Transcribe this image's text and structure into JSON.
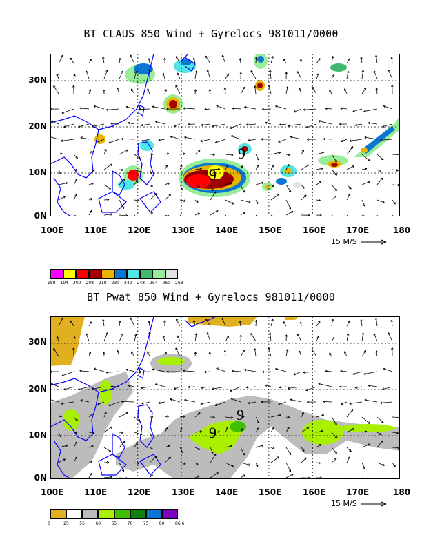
{
  "panel1": {
    "title": "BT CLAUS 850 Wind + Gyrelocs 981011/0000",
    "lat_labels": [
      "30N",
      "20N",
      "10N",
      "0N"
    ],
    "lon_labels": [
      "100E",
      "110E",
      "120E",
      "130E",
      "140E",
      "150E",
      "160E",
      "170E",
      "180"
    ],
    "scale_label": "15 M/S",
    "colorbar_colors": [
      "#ff00ff",
      "#ffff00",
      "#ff0000",
      "#a00000",
      "#e8b400",
      "#0a78d2",
      "#4ee6e6",
      "#40b870",
      "#98ee98",
      "#e2e2e2"
    ],
    "colorbar_labels": [
      "188",
      "194",
      "200",
      "208",
      "218",
      "230",
      "242",
      "248",
      "254",
      "260",
      "268"
    ],
    "gyre_markers": [
      "9",
      "9"
    ]
  },
  "panel2": {
    "title": "BT Pwat 850 Wind + Gyrelocs 981011/0000",
    "lat_labels": [
      "30N",
      "20N",
      "10N",
      "0N"
    ],
    "lon_labels": [
      "100E",
      "110E",
      "120E",
      "130E",
      "140E",
      "150E",
      "160E",
      "170E",
      "180"
    ],
    "scale_label": "15 M/S",
    "colorbar_colors": [
      "#e0b020",
      "#ffffff",
      "#bcbcbc",
      "#a8f000",
      "#40c000",
      "#108010",
      "#0a78d2",
      "#8000c0"
    ],
    "colorbar_labels": [
      "0",
      "25",
      "55",
      "60",
      "65",
      "70",
      "75",
      "80",
      "86.6"
    ],
    "gyre_markers": [
      "9",
      "9"
    ]
  }
}
